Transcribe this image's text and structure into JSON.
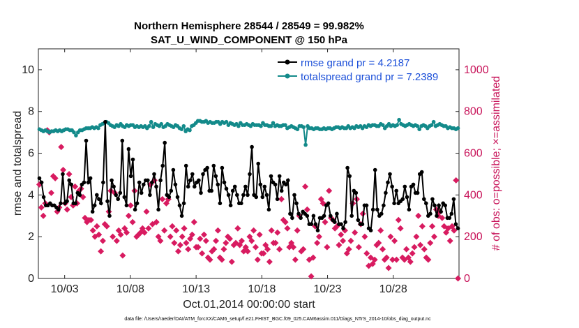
{
  "chart_data": {
    "type": "line",
    "title_line1": "Northern Hemisphere 28544 / 28549 = 99.982%",
    "title_line2": "SAT_U_WIND_COMPONENT @ 150 hPa",
    "xlabel": "Oct.01,2014 00:00:00 start",
    "ylabel_left": "rmse and totalspread",
    "ylabel_right": "# of obs: o=possible; ×=assimilated",
    "footnote": "data file: /Users/raeder/DAI/ATM_forcXX/CAM6_setup/f.e21.FHIST_BGC.f09_025.CAM6assim.011/Diags_NTrS_2014-10/obs_diag_output.nc",
    "x_range_days": [
      1.0,
      33.0
    ],
    "x_ticks": [
      {
        "day": 3,
        "label": "10/03"
      },
      {
        "day": 8,
        "label": "10/08"
      },
      {
        "day": 13,
        "label": "10/13"
      },
      {
        "day": 18,
        "label": "10/18"
      },
      {
        "day": 23,
        "label": "10/23"
      },
      {
        "day": 28,
        "label": "10/28"
      }
    ],
    "ylim_left": [
      0,
      11
    ],
    "yticks_left": [
      0,
      2,
      4,
      6,
      8,
      10
    ],
    "ylim_right": [
      0,
      1100
    ],
    "yticks_right": [
      0,
      200,
      400,
      600,
      800,
      1000
    ],
    "grid": false,
    "legend_position": "top-right",
    "legend": [
      {
        "label": "rmse grand pr = 4.2187",
        "color": "#000000",
        "series": "rmse"
      },
      {
        "label": "totalspread grand pr = 7.2389",
        "color": "#138a8a",
        "series": "totalspread"
      }
    ],
    "series": [
      {
        "name": "rmse grand pr = 4.2187",
        "color": "#000000",
        "values": [
          4.8,
          4.6,
          3.9,
          3.5,
          3.5,
          3.6,
          3.5,
          3.5,
          3.4,
          3.3,
          3.6,
          5.0,
          3.6,
          3.7,
          4.7,
          4.5,
          3.6,
          3.6,
          4.1,
          4.0,
          4.5,
          4.6,
          6.6,
          4.6,
          4.8,
          3.2,
          3.5,
          4.0,
          3.8,
          3.6,
          4.6,
          7.5,
          3.7,
          3.0,
          4.7,
          4.4,
          4.0,
          3.8,
          4.1,
          6.6,
          3.9,
          3.5,
          6.2,
          4.9,
          5.7,
          3.3,
          3.6,
          4.6,
          4.1,
          4.5,
          4.7,
          4.7,
          4.0,
          4.6,
          5.0,
          4.4,
          3.3,
          4.7,
          5.4,
          6.5,
          4.0,
          3.9,
          4.2,
          5.2,
          4.5,
          3.9,
          3.5,
          3.0,
          3.6,
          5.4,
          4.4,
          4.7,
          5.0,
          4.4,
          4.6,
          4.7,
          4.1,
          5.0,
          5.2,
          5.3,
          4.2,
          4.2,
          5.4,
          4.9,
          4.5,
          3.6,
          5.3,
          4.6,
          4.3,
          4.0,
          3.5,
          4.2,
          4.4,
          4.0,
          3.6,
          3.6,
          4.0,
          4.4,
          4.0,
          5.0,
          6.3,
          4.0,
          3.9,
          5.5,
          4.5,
          3.9,
          4.4,
          4.0,
          3.3,
          4.9,
          4.6,
          4.5,
          3.8,
          4.9,
          4.2,
          4.6,
          4.5,
          4.7,
          3.1,
          2.9,
          4.0,
          3.6,
          3.1,
          2.9,
          3.2,
          3.1,
          3.0,
          2.6,
          2.6,
          3.0,
          2.6,
          2.3,
          2.9,
          2.9,
          3.0,
          3.5,
          3.6,
          3.0,
          2.8,
          2.7,
          3.1,
          2.6,
          2.6,
          2.4,
          2.7,
          5.3,
          4.9,
          3.0,
          4.2,
          4.1,
          2.8,
          2.6,
          2.6,
          3.5,
          3.5,
          2.4,
          2.3,
          3.3,
          5.2,
          3.3,
          3.0,
          3.1,
          3.5,
          4.1,
          4.6,
          5.0,
          4.4,
          3.6,
          4.2,
          3.6,
          3.7,
          3.8,
          4.4,
          3.9,
          3.3,
          4.4,
          4.5,
          4.1,
          4.1,
          5.0,
          5.1,
          3.8,
          3.6,
          3.0,
          3.1,
          3.8,
          3.5,
          3.0,
          3.5,
          3.2,
          3.6,
          3.5,
          2.9,
          2.9,
          3.1,
          3.8,
          2.6,
          2.4
        ]
      },
      {
        "name": "totalspread grand pr = 7.2389",
        "color": "#138a8a",
        "values": [
          7.15,
          7.1,
          7.05,
          7.1,
          7.05,
          7.0,
          7.05,
          7.05,
          7.1,
          7.05,
          7.1,
          7.05,
          7.1,
          7.15,
          7.15,
          7.1,
          7.1,
          7.0,
          6.85,
          7.0,
          7.1,
          7.1,
          7.15,
          7.2,
          7.2,
          7.2,
          7.25,
          7.2,
          7.25,
          7.2,
          7.35,
          7.4,
          7.45,
          7.5,
          7.45,
          7.35,
          7.3,
          7.25,
          7.35,
          7.3,
          7.4,
          7.3,
          7.25,
          7.35,
          7.3,
          7.35,
          7.35,
          7.25,
          7.3,
          7.25,
          7.3,
          7.25,
          7.3,
          7.2,
          7.3,
          7.5,
          7.25,
          7.4,
          7.35,
          7.3,
          7.4,
          7.25,
          7.3,
          7.4,
          7.35,
          7.3,
          7.25,
          7.35,
          7.3,
          7.2,
          7.15,
          7.3,
          7.05,
          7.15,
          7.1,
          7.3,
          7.35,
          7.45,
          7.55,
          7.55,
          7.5,
          7.5,
          7.55,
          7.45,
          7.5,
          7.45,
          7.45,
          7.5,
          7.5,
          7.4,
          7.5,
          7.45,
          7.5,
          7.35,
          7.45,
          7.4,
          7.35,
          7.4,
          7.3,
          7.45,
          7.35,
          7.35,
          7.4,
          7.35,
          7.3,
          7.4,
          7.35,
          7.35,
          7.35,
          7.3,
          7.45,
          7.35,
          7.35,
          7.3,
          7.3,
          7.45,
          7.3,
          7.35,
          7.3,
          7.3,
          7.35,
          7.35,
          7.2,
          7.25,
          7.3,
          7.25,
          7.2,
          7.15,
          7.3,
          7.3,
          7.25,
          6.4,
          7.3,
          7.2,
          7.2,
          7.15,
          7.2,
          7.2,
          7.15,
          7.15,
          7.2,
          7.15,
          7.2,
          7.2,
          7.15,
          7.2,
          7.25,
          7.25,
          7.2,
          7.25,
          7.2,
          7.2,
          7.3,
          7.2,
          7.25,
          7.2,
          7.3,
          7.25,
          7.3,
          7.2,
          7.3,
          7.25,
          7.35,
          7.3,
          7.35,
          7.35,
          7.3,
          7.3,
          7.4,
          7.35,
          7.2,
          7.3,
          7.4,
          7.3,
          7.35,
          7.3,
          7.35,
          7.6,
          7.4,
          7.35,
          7.3,
          7.35,
          7.4,
          7.35,
          7.3,
          7.35,
          7.3,
          7.15,
          7.3,
          7.35,
          7.3,
          7.2,
          7.3,
          7.35,
          7.5,
          7.3,
          7.35,
          7.4,
          7.35,
          7.3,
          7.3,
          7.2,
          7.25,
          7.2,
          7.2,
          7.15,
          7.2
        ]
      },
      {
        "name": "",
        "axis": "right",
        "marker": "diamond",
        "color": "#d81b60",
        "values": [
          450,
          340,
          300,
          360,
          710,
          700,
          410,
          490,
          480,
          320,
          340,
          630,
          520,
          360,
          330,
          500,
          390,
          350,
          440,
          360,
          420,
          430,
          390,
          290,
          270,
          280,
          280,
          230,
          200,
          250,
          210,
          130,
          180,
          260,
          250,
          320,
          420,
          200,
          410,
          180,
          230,
          210,
          110,
          240,
          220,
          300,
          350,
          270,
          420,
          200,
          210,
          220,
          240,
          220,
          320,
          240,
          450,
          260,
          470,
          270,
          200,
          180,
          380,
          230,
          360,
          380,
          200,
          250,
          170,
          230,
          130,
          160,
          200,
          240,
          170,
          140,
          190,
          210,
          270,
          150,
          150,
          190,
          120,
          210,
          180,
          100,
          90,
          130,
          140,
          180,
          230,
          100,
          90,
          140,
          170,
          200,
          190,
          80,
          160,
          170,
          240,
          160,
          180,
          130,
          150,
          130,
          200,
          180,
          230,
          150,
          90,
          210,
          120,
          120,
          160,
          140,
          80,
          230,
          170,
          170,
          220,
          140,
          380,
          280,
          270,
          240,
          150,
          170,
          150,
          90,
          230,
          300,
          130,
          140,
          440,
          330,
          90,
          10,
          100,
          250,
          170,
          200,
          380,
          360,
          270,
          150,
          420,
          290,
          280,
          240,
          250,
          160,
          210,
          180,
          230,
          120,
          140,
          180,
          360,
          220,
          380,
          150,
          260,
          310,
          200,
          120,
          60,
          100,
          70,
          90,
          160,
          170,
          230,
          140,
          90,
          100,
          50,
          200,
          90,
          180,
          90,
          280,
          240,
          100,
          90,
          140,
          100,
          80,
          120,
          150,
          200,
          300,
          160,
          250,
          140,
          100,
          90,
          170,
          250,
          200,
          330,
          300,
          320,
          290,
          250,
          220,
          240,
          180,
          250,
          230,
          470,
          0
        ]
      }
    ]
  }
}
